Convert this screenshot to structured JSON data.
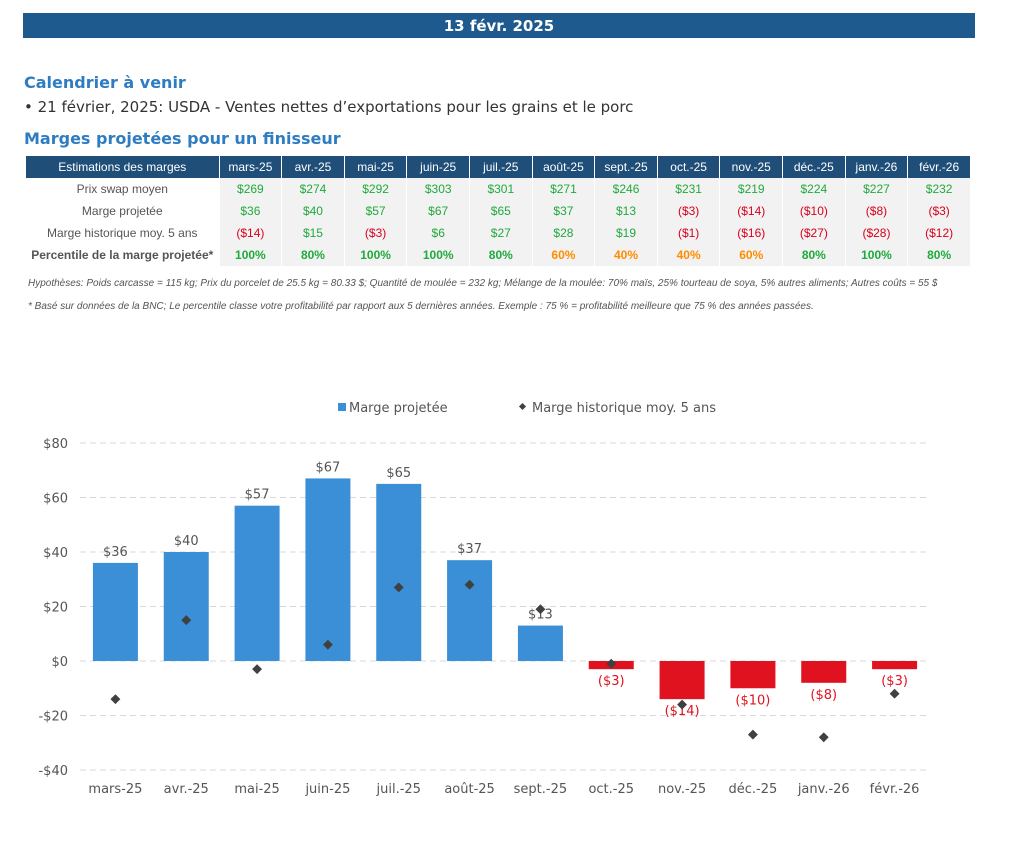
{
  "header": {
    "date": "13 févr. 2025"
  },
  "calendar": {
    "title": "Calendrier à venir",
    "event": "• 21 février, 2025: USDA - Ventes nettes d’exportations pour les grains et le porc"
  },
  "margins_section": {
    "title": "Marges projetées pour un finisseur"
  },
  "table": {
    "header_label": "Estimations des marges",
    "months": [
      "mars-25",
      "avr.-25",
      "mai-25",
      "juin-25",
      "juil.-25",
      "août-25",
      "sept.-25",
      "oct.-25",
      "nov.-25",
      "déc.-25",
      "janv.-26",
      "févr.-26"
    ],
    "rows": [
      {
        "label": "Prix swap moyen",
        "values": [
          "$269",
          "$274",
          "$292",
          "$303",
          "$301",
          "$271",
          "$246",
          "$231",
          "$219",
          "$224",
          "$227",
          "$232"
        ],
        "colors": [
          "pos",
          "pos",
          "pos",
          "pos",
          "pos",
          "pos",
          "pos",
          "pos",
          "pos",
          "pos",
          "pos",
          "pos"
        ]
      },
      {
        "label": "Marge projetée",
        "values": [
          "$36",
          "$40",
          "$57",
          "$67",
          "$65",
          "$37",
          "$13",
          "($3)",
          "($14)",
          "($10)",
          "($8)",
          "($3)"
        ],
        "colors": [
          "pos",
          "pos",
          "pos",
          "pos",
          "pos",
          "pos",
          "pos",
          "neg",
          "neg",
          "neg",
          "neg",
          "neg"
        ]
      },
      {
        "label": "Marge historique moy. 5 ans",
        "values": [
          "($14)",
          "$15",
          "($3)",
          "$6",
          "$27",
          "$28",
          "$19",
          "($1)",
          "($16)",
          "($27)",
          "($28)",
          "($12)"
        ],
        "colors": [
          "neg",
          "pos",
          "neg",
          "pos",
          "pos",
          "pos",
          "pos",
          "neg",
          "neg",
          "neg",
          "neg",
          "neg"
        ]
      },
      {
        "label": "Percentile de la marge projetée*",
        "values": [
          "100%",
          "80%",
          "100%",
          "100%",
          "80%",
          "60%",
          "40%",
          "40%",
          "60%",
          "80%",
          "100%",
          "80%"
        ],
        "colors": [
          "pos",
          "pos",
          "pos",
          "pos",
          "pos",
          "mid",
          "mid",
          "mid",
          "mid",
          "pos",
          "pos",
          "pos"
        ]
      }
    ]
  },
  "notes": {
    "hypotheses": "Hypothèses: Poids carcasse = 115 kg; Prix du porcelet de 25.5 kg = 80.33 $; Quantité de moulée = 232 kg; Mélange de la moulée: 70% maïs, 25% tourteau de soya, 5% autres aliments; Autres coûts = 55 $",
    "percentile": "* Basé sur données de la BNC; Le percentile classe votre profitabilité par rapport aux 5 dernières années. Exemple : 75 % = profitabilité meilleure que 75 % des années passées."
  },
  "chart_data": {
    "type": "bar",
    "categories": [
      "mars-25",
      "avr.-25",
      "mai-25",
      "juin-25",
      "juil.-25",
      "août-25",
      "sept.-25",
      "oct.-25",
      "nov.-25",
      "déc.-25",
      "janv.-26",
      "févr.-26"
    ],
    "series": [
      {
        "name": "Marge projetée",
        "type": "bar",
        "values": [
          36,
          40,
          57,
          67,
          65,
          37,
          13,
          -3,
          -14,
          -10,
          -8,
          -3
        ],
        "labels": [
          "$36",
          "$40",
          "$57",
          "$67",
          "$65",
          "$37",
          "$13",
          "($3)",
          "($14)",
          "($10)",
          "($8)",
          "($3)"
        ],
        "color_pos": "#3a8fd6",
        "color_neg": "#e0121f"
      },
      {
        "name": "Marge historique moy. 5 ans",
        "type": "scatter",
        "values": [
          -14,
          15,
          -3,
          6,
          27,
          28,
          19,
          -1,
          -16,
          -27,
          -28,
          -12
        ],
        "color": "#404040"
      }
    ],
    "ylim": [
      -40,
      80
    ],
    "yticks": [
      -40,
      -20,
      0,
      20,
      40,
      60,
      80
    ],
    "ytick_labels": [
      "-$40",
      "-$20",
      "$0",
      "$20",
      "$40",
      "$60",
      "$80"
    ],
    "grid": true,
    "legend": "top-center"
  }
}
